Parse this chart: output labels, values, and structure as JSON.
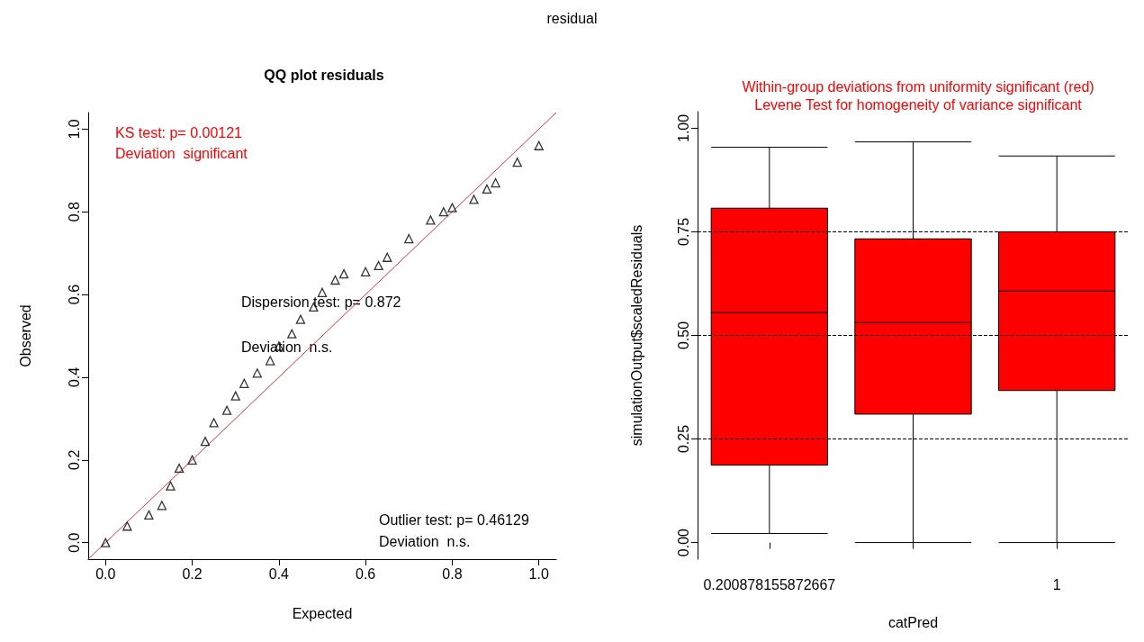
{
  "chart_data": [
    {
      "type": "scatter",
      "title": "QQ plot residuals",
      "xlabel": "Expected",
      "ylabel": "Observed",
      "marker": "triangle",
      "grid": false,
      "xlim": [
        -0.04,
        1.04
      ],
      "xticks": [
        {
          "value": 0,
          "label": "0.0"
        },
        0.2,
        0.4,
        0.6,
        0.8,
        {
          "value": 1,
          "label": "1.0"
        }
      ],
      "ylim": [
        -0.04,
        1.04
      ],
      "yticks": [
        {
          "value": 0,
          "label": "0.0"
        },
        0.2,
        0.4,
        0.6,
        0.8,
        {
          "value": 1,
          "label": "1.0"
        }
      ],
      "series": [
        {
          "color": "#000000",
          "x": [
            0,
            0.05,
            0.1,
            0.13,
            0.15,
            0.17,
            0.2,
            0.23,
            0.25,
            0.28,
            0.3,
            0.32,
            0.35,
            0.38,
            0.4,
            0.43,
            0.45,
            0.48,
            0.5,
            0.53,
            0.55,
            0.6,
            0.63,
            0.65,
            0.7,
            0.75,
            0.78,
            0.8,
            0.85,
            0.88,
            0.9,
            0.95,
            1.0
          ],
          "values": [
            0,
            0.04,
            0.067,
            0.09,
            0.137,
            0.18,
            0.2,
            0.245,
            0.29,
            0.32,
            0.355,
            0.385,
            0.41,
            0.44,
            0.475,
            0.505,
            0.54,
            0.57,
            0.605,
            0.635,
            0.65,
            0.655,
            0.67,
            0.69,
            0.735,
            0.78,
            0.8,
            0.81,
            0.83,
            0.855,
            0.87,
            0.92,
            0.96
          ]
        },
        {
          "type": "line",
          "color": "#e0303c",
          "marker": "none",
          "x": [
            -0.04,
            1.04
          ],
          "values": [
            -0.04,
            1.04
          ]
        }
      ],
      "annotations": [
        "KS test: p= 0.00121",
        "Deviation  significant",
        "Dispersion test: p= 0.872",
        "Deviation  n.s.",
        "Outlier test: p= 0.46129",
        "Deviation  n.s.",
        "residual"
      ]
    },
    {
      "type": "box",
      "title": "Within-group deviations from uniformity significant (red)",
      "subtitle": "Levene Test for homogeneity of variance significant",
      "xlabel": "catPred",
      "ylabel": "simulationOutput$scaledResiduals",
      "grid": false,
      "categories": [
        "0.200878155872667",
        null,
        "1"
      ],
      "ylim": [
        -0.04,
        1.04
      ],
      "yticks": [
        {
          "value": 0,
          "label": "0.00"
        },
        0.25,
        {
          "value": 0.5,
          "label": "0.50"
        },
        0.75,
        {
          "value": 1,
          "label": "1.00"
        }
      ],
      "series": [
        {
          "color": "#ff0000",
          "boxes": [
            {
              "low": 0.022,
              "q1": 0.187,
              "median": 0.555,
              "q3": 0.807,
              "high": 0.954
            },
            {
              "low": 0,
              "q1": 0.31,
              "median": 0.531,
              "q3": 0.733,
              "high": 0.967
            },
            {
              "low": 0,
              "q1": 0.367,
              "median": 0.607,
              "q3": 0.75,
              "high": 0.933
            }
          ]
        }
      ],
      "ref_lines": [
        {
          "axis": "y",
          "value": 0.25,
          "color": "#000000",
          "line_style": "dashed"
        },
        {
          "axis": "y",
          "value": 0.5,
          "color": "#000000",
          "line_style": "dashed"
        },
        {
          "axis": "y",
          "value": 0.75,
          "color": "#000000",
          "line_style": "dashed"
        }
      ]
    }
  ]
}
